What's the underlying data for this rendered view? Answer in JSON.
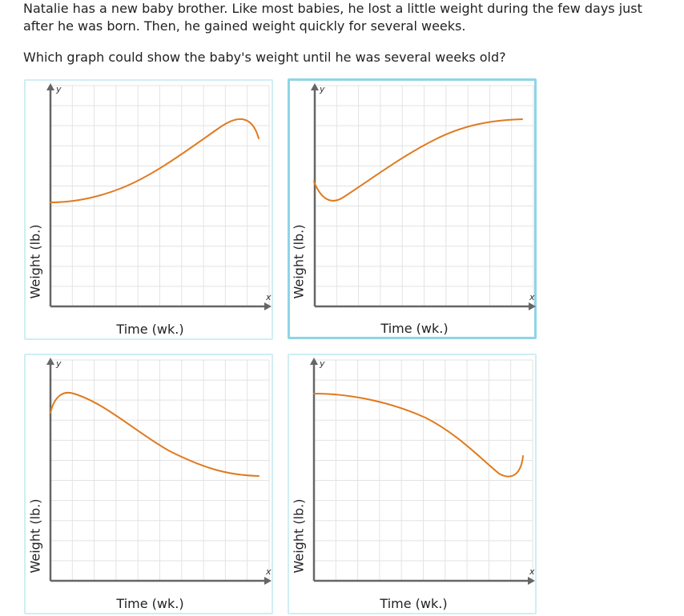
{
  "question": {
    "prompt": "Natalie has a new baby brother. Like most babies, he lost a little weight during the few days just after he was born. Then, he gained weight quickly for several weeks.",
    "ask": "Which graph could show the baby's weight until he was several weeks old?"
  },
  "colors": {
    "curve": "#e07a1f",
    "grid": "#e3e3e3",
    "axis": "#666666",
    "card_border": "#cfeef4",
    "card_border_selected": "#8fd4e6"
  },
  "choices": [
    {
      "id": "A",
      "selected": false,
      "x_label": "Time (wk.)",
      "y_label": "Weight (lb.)",
      "x_axis_letter": "x",
      "y_axis_letter": "y",
      "curve_shape": "slow rise then peak and drop"
    },
    {
      "id": "B",
      "selected": true,
      "x_label": "Time (wk.)",
      "y_label": "Weight (lb.)",
      "x_axis_letter": "x",
      "y_axis_letter": "y",
      "curve_shape": "small dip then rise and level off"
    },
    {
      "id": "C",
      "selected": false,
      "x_label": "Time (wk.)",
      "y_label": "Weight (lb.)",
      "x_axis_letter": "x",
      "y_axis_letter": "y",
      "curve_shape": "quick rise then decline and level off"
    },
    {
      "id": "D",
      "selected": false,
      "x_label": "Time (wk.)",
      "y_label": "Weight (lb.)",
      "x_axis_letter": "x",
      "y_axis_letter": "y",
      "curve_shape": "decline then dip and slight rise"
    }
  ]
}
